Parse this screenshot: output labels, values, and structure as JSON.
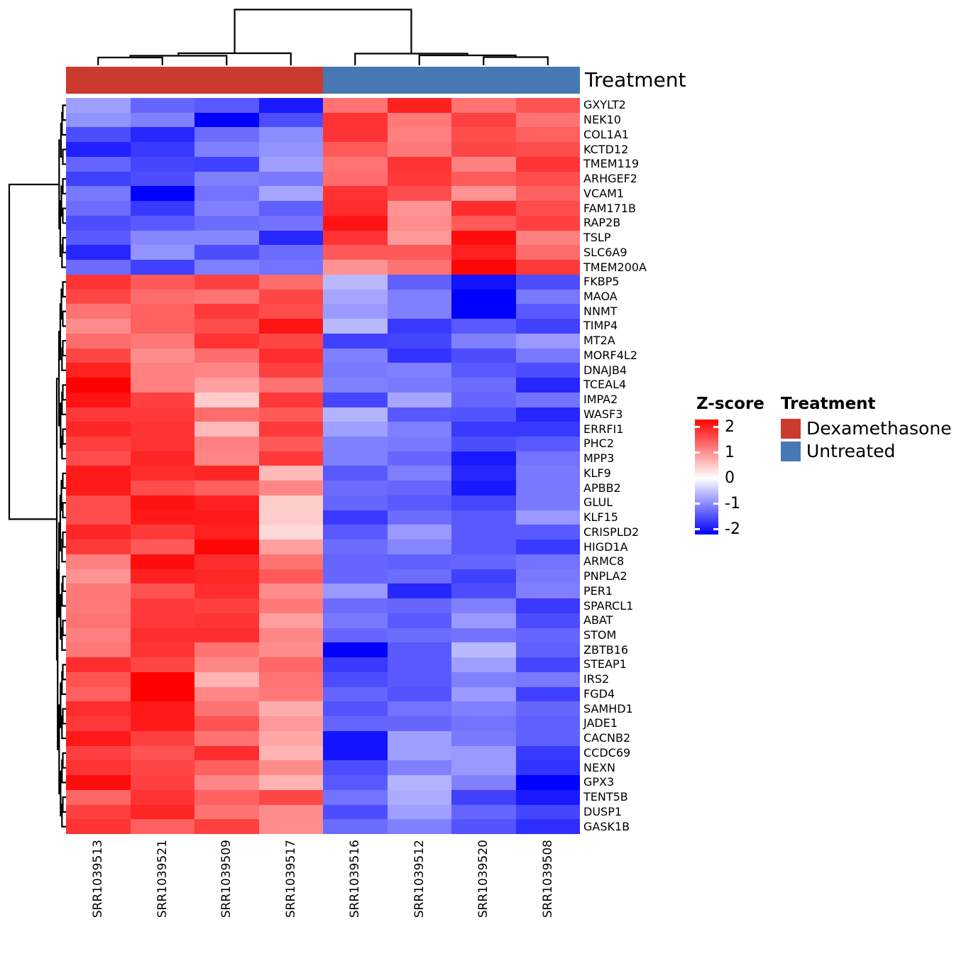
{
  "annotation": {
    "label": "Treatment",
    "groups": [
      {
        "name": "Dexamethasone",
        "color": "#CB3A2E"
      },
      {
        "name": "Untreated",
        "color": "#4878B4"
      }
    ]
  },
  "legend": {
    "zscore_title": "Z-score",
    "treatment_title": "Treatment",
    "tick_labels": [
      "2",
      "1",
      "0",
      "-1",
      "-2"
    ],
    "tick_values": [
      2,
      1,
      0,
      -1,
      -2
    ],
    "entries": [
      {
        "label": "Dexamethasone",
        "color": "#CB3A2E"
      },
      {
        "label": "Untreated",
        "color": "#4878B4"
      }
    ]
  },
  "chart_data": {
    "type": "heatmap",
    "title": "",
    "value_name": "Z-score",
    "columns": [
      "SRR1039513",
      "SRR1039521",
      "SRR1039509",
      "SRR1039517",
      "SRR1039516",
      "SRR1039512",
      "SRR1039520",
      "SRR1039508"
    ],
    "column_annotation": [
      "Dexamethasone",
      "Dexamethasone",
      "Dexamethasone",
      "Dexamethasone",
      "Untreated",
      "Untreated",
      "Untreated",
      "Untreated"
    ],
    "rows": [
      "GXYLT2",
      "NEK10",
      "COL1A1",
      "KCTD12",
      "TMEM119",
      "ARHGEF2",
      "VCAM1",
      "FAM171B",
      "RAP2B",
      "TSLP",
      "SLC6A9",
      "TMEM200A",
      "FKBP5",
      "MAOA",
      "NNMT",
      "TIMP4",
      "MT2A",
      "MORF4L2",
      "DNAJB4",
      "TCEAL4",
      "IMPA2",
      "WASF3",
      "ERRFI1",
      "PHC2",
      "MPP3",
      "KLF9",
      "APBB2",
      "GLUL",
      "KLF15",
      "CRISPLD2",
      "HIGD1A",
      "ARMC8",
      "PNPLA2",
      "PER1",
      "SPARCL1",
      "ABAT",
      "STOM",
      "ZBTB16",
      "STEAP1",
      "IRS2",
      "FGD4",
      "SAMHD1",
      "JADE1",
      "CACNB2",
      "CCDC69",
      "NEXN",
      "GPX3",
      "TENT5B",
      "DUSP1",
      "GASK1B"
    ],
    "values": [
      [
        -0.75,
        -1.2,
        -1.3,
        -1.8,
        1.1,
        1.75,
        1.1,
        1.35
      ],
      [
        -0.85,
        -1.0,
        -2.0,
        -1.4,
        1.6,
        1.05,
        1.5,
        1.1
      ],
      [
        -1.4,
        -1.7,
        -1.15,
        -0.9,
        1.6,
        1.0,
        1.4,
        1.25
      ],
      [
        -1.75,
        -1.55,
        -1.0,
        -0.85,
        1.3,
        1.05,
        1.45,
        1.4
      ],
      [
        -1.2,
        -1.45,
        -1.5,
        -0.75,
        1.1,
        1.6,
        1.0,
        1.6
      ],
      [
        -1.5,
        -1.4,
        -1.0,
        -1.05,
        1.15,
        1.55,
        1.3,
        1.4
      ],
      [
        -1.05,
        -2.0,
        -1.1,
        -0.7,
        1.6,
        1.4,
        0.85,
        1.25
      ],
      [
        -1.15,
        -1.55,
        -1.0,
        -1.25,
        1.65,
        0.85,
        1.65,
        1.4
      ],
      [
        -1.4,
        -1.3,
        -1.15,
        -1.1,
        1.85,
        0.9,
        1.3,
        1.5
      ],
      [
        -1.3,
        -0.95,
        -0.95,
        -1.7,
        1.6,
        0.8,
        1.9,
        1.0
      ],
      [
        -1.7,
        -0.85,
        -1.4,
        -1.15,
        1.3,
        1.3,
        1.75,
        1.15
      ],
      [
        -1.15,
        -1.5,
        -1.0,
        -1.1,
        0.85,
        1.1,
        1.95,
        1.55
      ],
      [
        1.6,
        1.3,
        1.5,
        1.15,
        -0.55,
        -1.25,
        -1.85,
        -1.4
      ],
      [
        1.45,
        1.15,
        1.1,
        1.45,
        -0.7,
        -1.0,
        -2.0,
        -1.05
      ],
      [
        1.1,
        1.25,
        1.55,
        1.4,
        -0.8,
        -1.0,
        -2.0,
        -1.3
      ],
      [
        0.9,
        1.25,
        1.4,
        1.85,
        -0.55,
        -1.55,
        -1.3,
        -1.5
      ],
      [
        1.15,
        1.05,
        1.6,
        1.45,
        -1.5,
        -1.45,
        -1.0,
        -0.8
      ],
      [
        1.45,
        0.9,
        1.15,
        1.65,
        -1.0,
        -1.6,
        -1.4,
        -1.05
      ],
      [
        1.75,
        1.0,
        0.95,
        1.5,
        -1.05,
        -1.0,
        -1.3,
        -1.4
      ],
      [
        2.0,
        1.0,
        0.75,
        1.1,
        -1.0,
        -1.05,
        -1.15,
        -1.7
      ],
      [
        1.85,
        1.5,
        0.4,
        1.55,
        -1.45,
        -0.7,
        -1.2,
        -1.1
      ],
      [
        1.55,
        1.55,
        1.15,
        1.3,
        -0.6,
        -1.3,
        -1.35,
        -1.7
      ],
      [
        1.7,
        1.6,
        0.55,
        1.55,
        -0.75,
        -1.0,
        -1.55,
        -1.55
      ],
      [
        1.5,
        1.6,
        1.0,
        1.3,
        -1.0,
        -1.05,
        -1.4,
        -1.3
      ],
      [
        1.4,
        1.7,
        0.95,
        1.55,
        -1.0,
        -1.2,
        -1.8,
        -1.1
      ],
      [
        1.8,
        1.65,
        1.7,
        0.55,
        -1.3,
        -1.0,
        -1.7,
        -1.05
      ],
      [
        1.8,
        1.4,
        1.25,
        0.95,
        -1.15,
        -1.2,
        -1.8,
        -1.05
      ],
      [
        1.4,
        1.85,
        1.75,
        0.4,
        -1.2,
        -1.3,
        -1.45,
        -1.05
      ],
      [
        1.4,
        1.8,
        1.8,
        0.4,
        -1.55,
        -1.15,
        -1.3,
        -0.8
      ],
      [
        1.7,
        1.55,
        1.75,
        0.3,
        -1.3,
        -0.8,
        -1.3,
        -1.3
      ],
      [
        1.55,
        1.3,
        1.95,
        0.75,
        -1.15,
        -0.95,
        -1.3,
        -1.55
      ],
      [
        1.0,
        1.9,
        1.65,
        1.1,
        -1.2,
        -1.25,
        -1.2,
        -1.1
      ],
      [
        0.85,
        1.75,
        1.7,
        1.3,
        -1.2,
        -1.15,
        -1.5,
        -1.05
      ],
      [
        1.05,
        1.35,
        1.65,
        0.9,
        -0.8,
        -1.7,
        -1.4,
        -1.0
      ],
      [
        1.05,
        1.55,
        1.5,
        1.05,
        -1.15,
        -1.2,
        -1.0,
        -1.55
      ],
      [
        1.1,
        1.55,
        1.6,
        0.75,
        -1.05,
        -1.3,
        -0.8,
        -1.4
      ],
      [
        1.0,
        1.65,
        1.65,
        0.95,
        -1.2,
        -1.15,
        -1.1,
        -1.2
      ],
      [
        1.05,
        1.6,
        1.1,
        0.9,
        -2.0,
        -1.3,
        -0.55,
        -1.25
      ],
      [
        1.65,
        1.45,
        0.95,
        1.2,
        -1.55,
        -1.3,
        -0.75,
        -1.45
      ],
      [
        1.35,
        2.0,
        0.6,
        1.1,
        -1.4,
        -1.3,
        -1.0,
        -1.05
      ],
      [
        1.25,
        2.0,
        0.95,
        1.05,
        -1.2,
        -1.35,
        -0.8,
        -1.5
      ],
      [
        1.65,
        1.8,
        1.1,
        0.65,
        -1.35,
        -1.1,
        -1.0,
        -1.2
      ],
      [
        1.55,
        1.8,
        1.35,
        0.8,
        -1.2,
        -1.2,
        -1.1,
        -1.25
      ],
      [
        1.8,
        1.5,
        1.1,
        0.7,
        -1.85,
        -0.75,
        -1.05,
        -1.25
      ],
      [
        1.5,
        1.35,
        1.65,
        0.6,
        -1.85,
        -0.75,
        -0.8,
        -1.55
      ],
      [
        1.6,
        1.45,
        1.25,
        0.9,
        -1.4,
        -1.0,
        -0.8,
        -1.6
      ],
      [
        1.9,
        1.5,
        0.95,
        0.6,
        -1.3,
        -0.6,
        -1.0,
        -2.0
      ],
      [
        1.2,
        1.6,
        1.25,
        1.45,
        -1.1,
        -0.65,
        -1.5,
        -1.8
      ],
      [
        1.5,
        1.7,
        1.1,
        0.9,
        -1.4,
        -0.75,
        -1.2,
        -1.45
      ],
      [
        1.6,
        1.25,
        1.5,
        0.9,
        -1.15,
        -1.0,
        -1.35,
        -1.65
      ]
    ],
    "colormap": {
      "min": -2,
      "mid": 0,
      "max": 2,
      "min_color": "#0000FF",
      "mid_color": "#FFFFFF",
      "max_color": "#FF0000"
    },
    "legend_position": "right",
    "clustering": {
      "rows": true,
      "columns": true
    }
  }
}
